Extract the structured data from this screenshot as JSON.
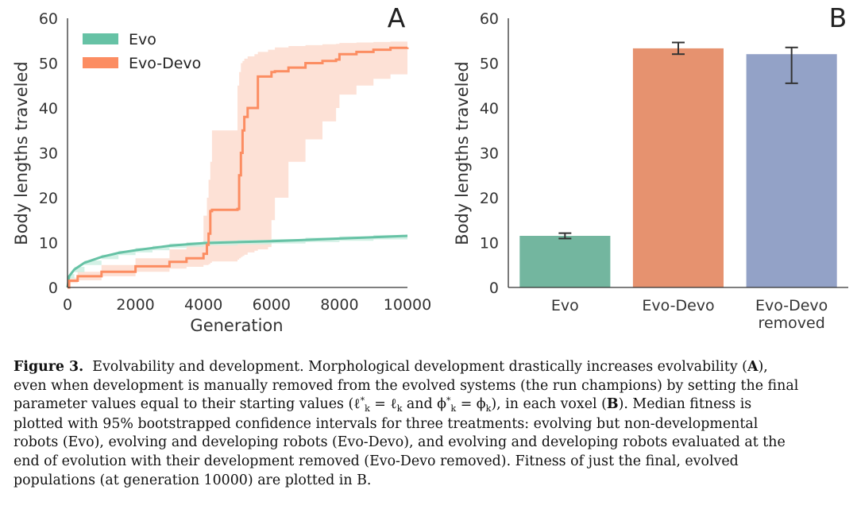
{
  "colors": {
    "evo": "#66c2a5",
    "evodevo": "#fc8d62",
    "evodevo_removed": "#8da0cb",
    "evodevo_band": "#fddccf",
    "evo_band": "#cdeee2",
    "bar_evo": "#73b69f",
    "bar_evodevo": "#e6926f",
    "bar_removed": "#93a2c7",
    "error_bar": "#333333"
  },
  "chart_data": [
    {
      "panel": "A",
      "type": "line",
      "xlabel": "Generation",
      "ylabel": "Body lengths traveled",
      "xlim": [
        0,
        10000
      ],
      "ylim": [
        0,
        60
      ],
      "xticks": [
        "0",
        "2000",
        "4000",
        "6000",
        "8000",
        "10000"
      ],
      "yticks": [
        "0",
        "10",
        "20",
        "30",
        "40",
        "50",
        "60"
      ],
      "legend_position": "upper-left",
      "grid": false,
      "series": [
        {
          "name": "Evo",
          "x": [
            0,
            50,
            200,
            500,
            1000,
            1500,
            2000,
            2500,
            3000,
            3500,
            4000,
            5000,
            6000,
            7000,
            8000,
            9000,
            10000
          ],
          "y": [
            0,
            2.5,
            4,
            5.5,
            6.8,
            7.7,
            8.3,
            8.8,
            9.3,
            9.6,
            9.9,
            10.1,
            10.3,
            10.6,
            10.9,
            11.2,
            11.5
          ],
          "ci_lower": [
            0,
            2,
            3.4,
            5,
            6.3,
            7.2,
            7.8,
            8.3,
            8.8,
            9.1,
            9.4,
            9.6,
            9.8,
            10.1,
            10.4,
            10.7,
            11
          ],
          "ci_upper": [
            0,
            3,
            4.6,
            6,
            7.3,
            8.2,
            8.8,
            9.3,
            9.8,
            10.1,
            10.4,
            10.6,
            10.8,
            11.1,
            11.4,
            11.7,
            12
          ]
        },
        {
          "name": "Evo-Devo",
          "x": [
            0,
            50,
            300,
            1000,
            2000,
            3000,
            3500,
            4000,
            4100,
            4150,
            4200,
            4250,
            5000,
            5050,
            5100,
            5150,
            5200,
            5300,
            5500,
            5600,
            5900,
            6000,
            6100,
            6500,
            7000,
            7500,
            7900,
            8000,
            8500,
            9000,
            9500,
            10000
          ],
          "y": [
            0,
            1.5,
            2.5,
            3.5,
            4.7,
            5.7,
            6.5,
            7.5,
            9.5,
            12,
            17,
            17.3,
            17.5,
            25,
            30,
            35,
            38,
            40,
            40,
            47,
            47,
            48,
            48.2,
            49,
            50,
            50.5,
            50.8,
            52,
            52.5,
            53,
            53.4,
            53.5
          ],
          "ci_lower": [
            0,
            1,
            1.6,
            2.5,
            3.5,
            4.2,
            4.6,
            5,
            5,
            5.2,
            5.5,
            5.8,
            6.2,
            6.5,
            6.8,
            7,
            7.3,
            7.8,
            8.2,
            8.5,
            9,
            15,
            20,
            28,
            33,
            37,
            40,
            43,
            45,
            46.5,
            47.5,
            48
          ],
          "ci_upper": [
            0,
            2.2,
            3.5,
            5,
            6.5,
            8.5,
            10,
            16,
            20,
            24,
            28,
            35,
            45,
            48,
            50,
            50.5,
            51,
            51.5,
            52,
            52.5,
            53,
            53,
            53.5,
            53.8,
            54,
            54.2,
            54.3,
            54.5,
            54.6,
            54.7,
            54.8,
            55
          ]
        }
      ]
    },
    {
      "panel": "B",
      "type": "bar",
      "ylabel": "Body lengths traveled",
      "ylim": [
        0,
        60
      ],
      "yticks": [
        "0",
        "10",
        "20",
        "30",
        "40",
        "50",
        "60"
      ],
      "categories": [
        "Evo",
        "Evo-Devo",
        "Evo-Devo removed"
      ],
      "category_lines": [
        [
          "Evo"
        ],
        [
          "Evo-Devo"
        ],
        [
          "Evo-Devo",
          "removed"
        ]
      ],
      "values": [
        11.5,
        53.3,
        52
      ],
      "err_low": [
        10.9,
        52,
        45.5
      ],
      "err_high": [
        12.1,
        54.6,
        53.5
      ],
      "grid": false
    }
  ],
  "caption": {
    "label": "Figure 3.",
    "line1_a": "Evolvability and development. Morphological development drastically increases evolvability (",
    "line1_b": "A",
    "line1_c": "),",
    "line2": "even when development is manually removed from the evolved systems (the run champions) by setting the final",
    "line3_a": "parameter values equal to their starting values (ℓ",
    "line3_sup1": "*",
    "line3_sub1": "k",
    "line3_b": " = ℓ",
    "line3_sub2": "k",
    "line3_c": " and ϕ",
    "line3_sup2": "*",
    "line3_sub3": "k",
    "line3_d": " = ϕ",
    "line3_sub4": "k",
    "line3_e": "), in each voxel (",
    "line3_f": "B",
    "line3_g": "). Median fitness is",
    "line4": "plotted with 95% bootstrapped confidence intervals for three treatments: evolving but non-developmental",
    "line5": "robots (Evo), evolving and developing robots (Evo-Devo), and evolving and developing robots evaluated at the",
    "line6": "end of evolution with their development removed (Evo-Devo removed). Fitness of just the final, evolved",
    "line7": "populations (at generation 10000) are plotted in B."
  }
}
